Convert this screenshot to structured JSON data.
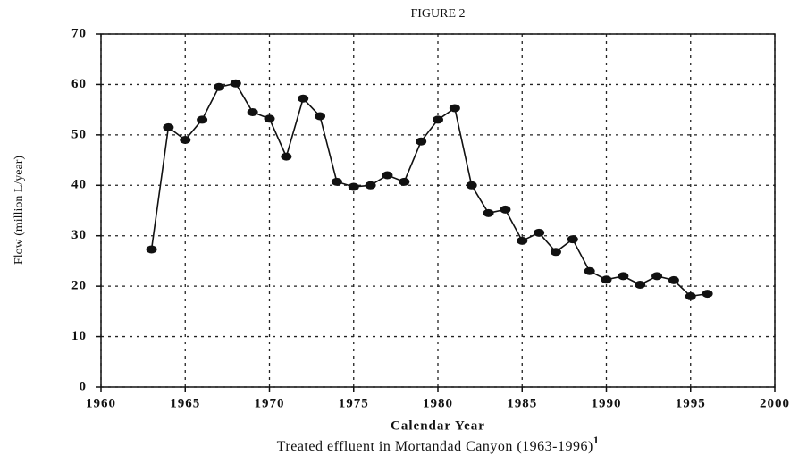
{
  "chart_data": {
    "type": "line",
    "title": "FIGURE 2",
    "xlabel": "Calendar Year",
    "ylabel": "Flow (million L/year)",
    "caption": "Treated effluent in Mortandad Canyon (1963-1996)",
    "caption_footnote": "1",
    "x": [
      1963,
      1964,
      1965,
      1966,
      1967,
      1968,
      1969,
      1970,
      1971,
      1972,
      1973,
      1974,
      1975,
      1976,
      1977,
      1978,
      1979,
      1980,
      1981,
      1982,
      1983,
      1984,
      1985,
      1986,
      1987,
      1988,
      1989,
      1990,
      1991,
      1992,
      1993,
      1994,
      1995,
      1996
    ],
    "series": [
      {
        "name": "Flow",
        "color": "#111111",
        "values": [
          27.3,
          51.5,
          49,
          53,
          59.5,
          60.2,
          54.5,
          53.2,
          45.7,
          57.2,
          53.7,
          40.7,
          39.7,
          40,
          42,
          40.7,
          48.7,
          53,
          55.3,
          40,
          34.5,
          35.2,
          29,
          30.6,
          26.8,
          29.3,
          23,
          21.3,
          22,
          20.3,
          22,
          21.2,
          18,
          18.5
        ]
      }
    ],
    "xlim": [
      1960,
      2000
    ],
    "xticks": [
      1960,
      1965,
      1970,
      1975,
      1980,
      1985,
      1990,
      1995,
      2000
    ],
    "ylim": [
      0,
      70
    ],
    "yticks": [
      0,
      10,
      20,
      30,
      40,
      50,
      60,
      70
    ],
    "grid": true
  }
}
